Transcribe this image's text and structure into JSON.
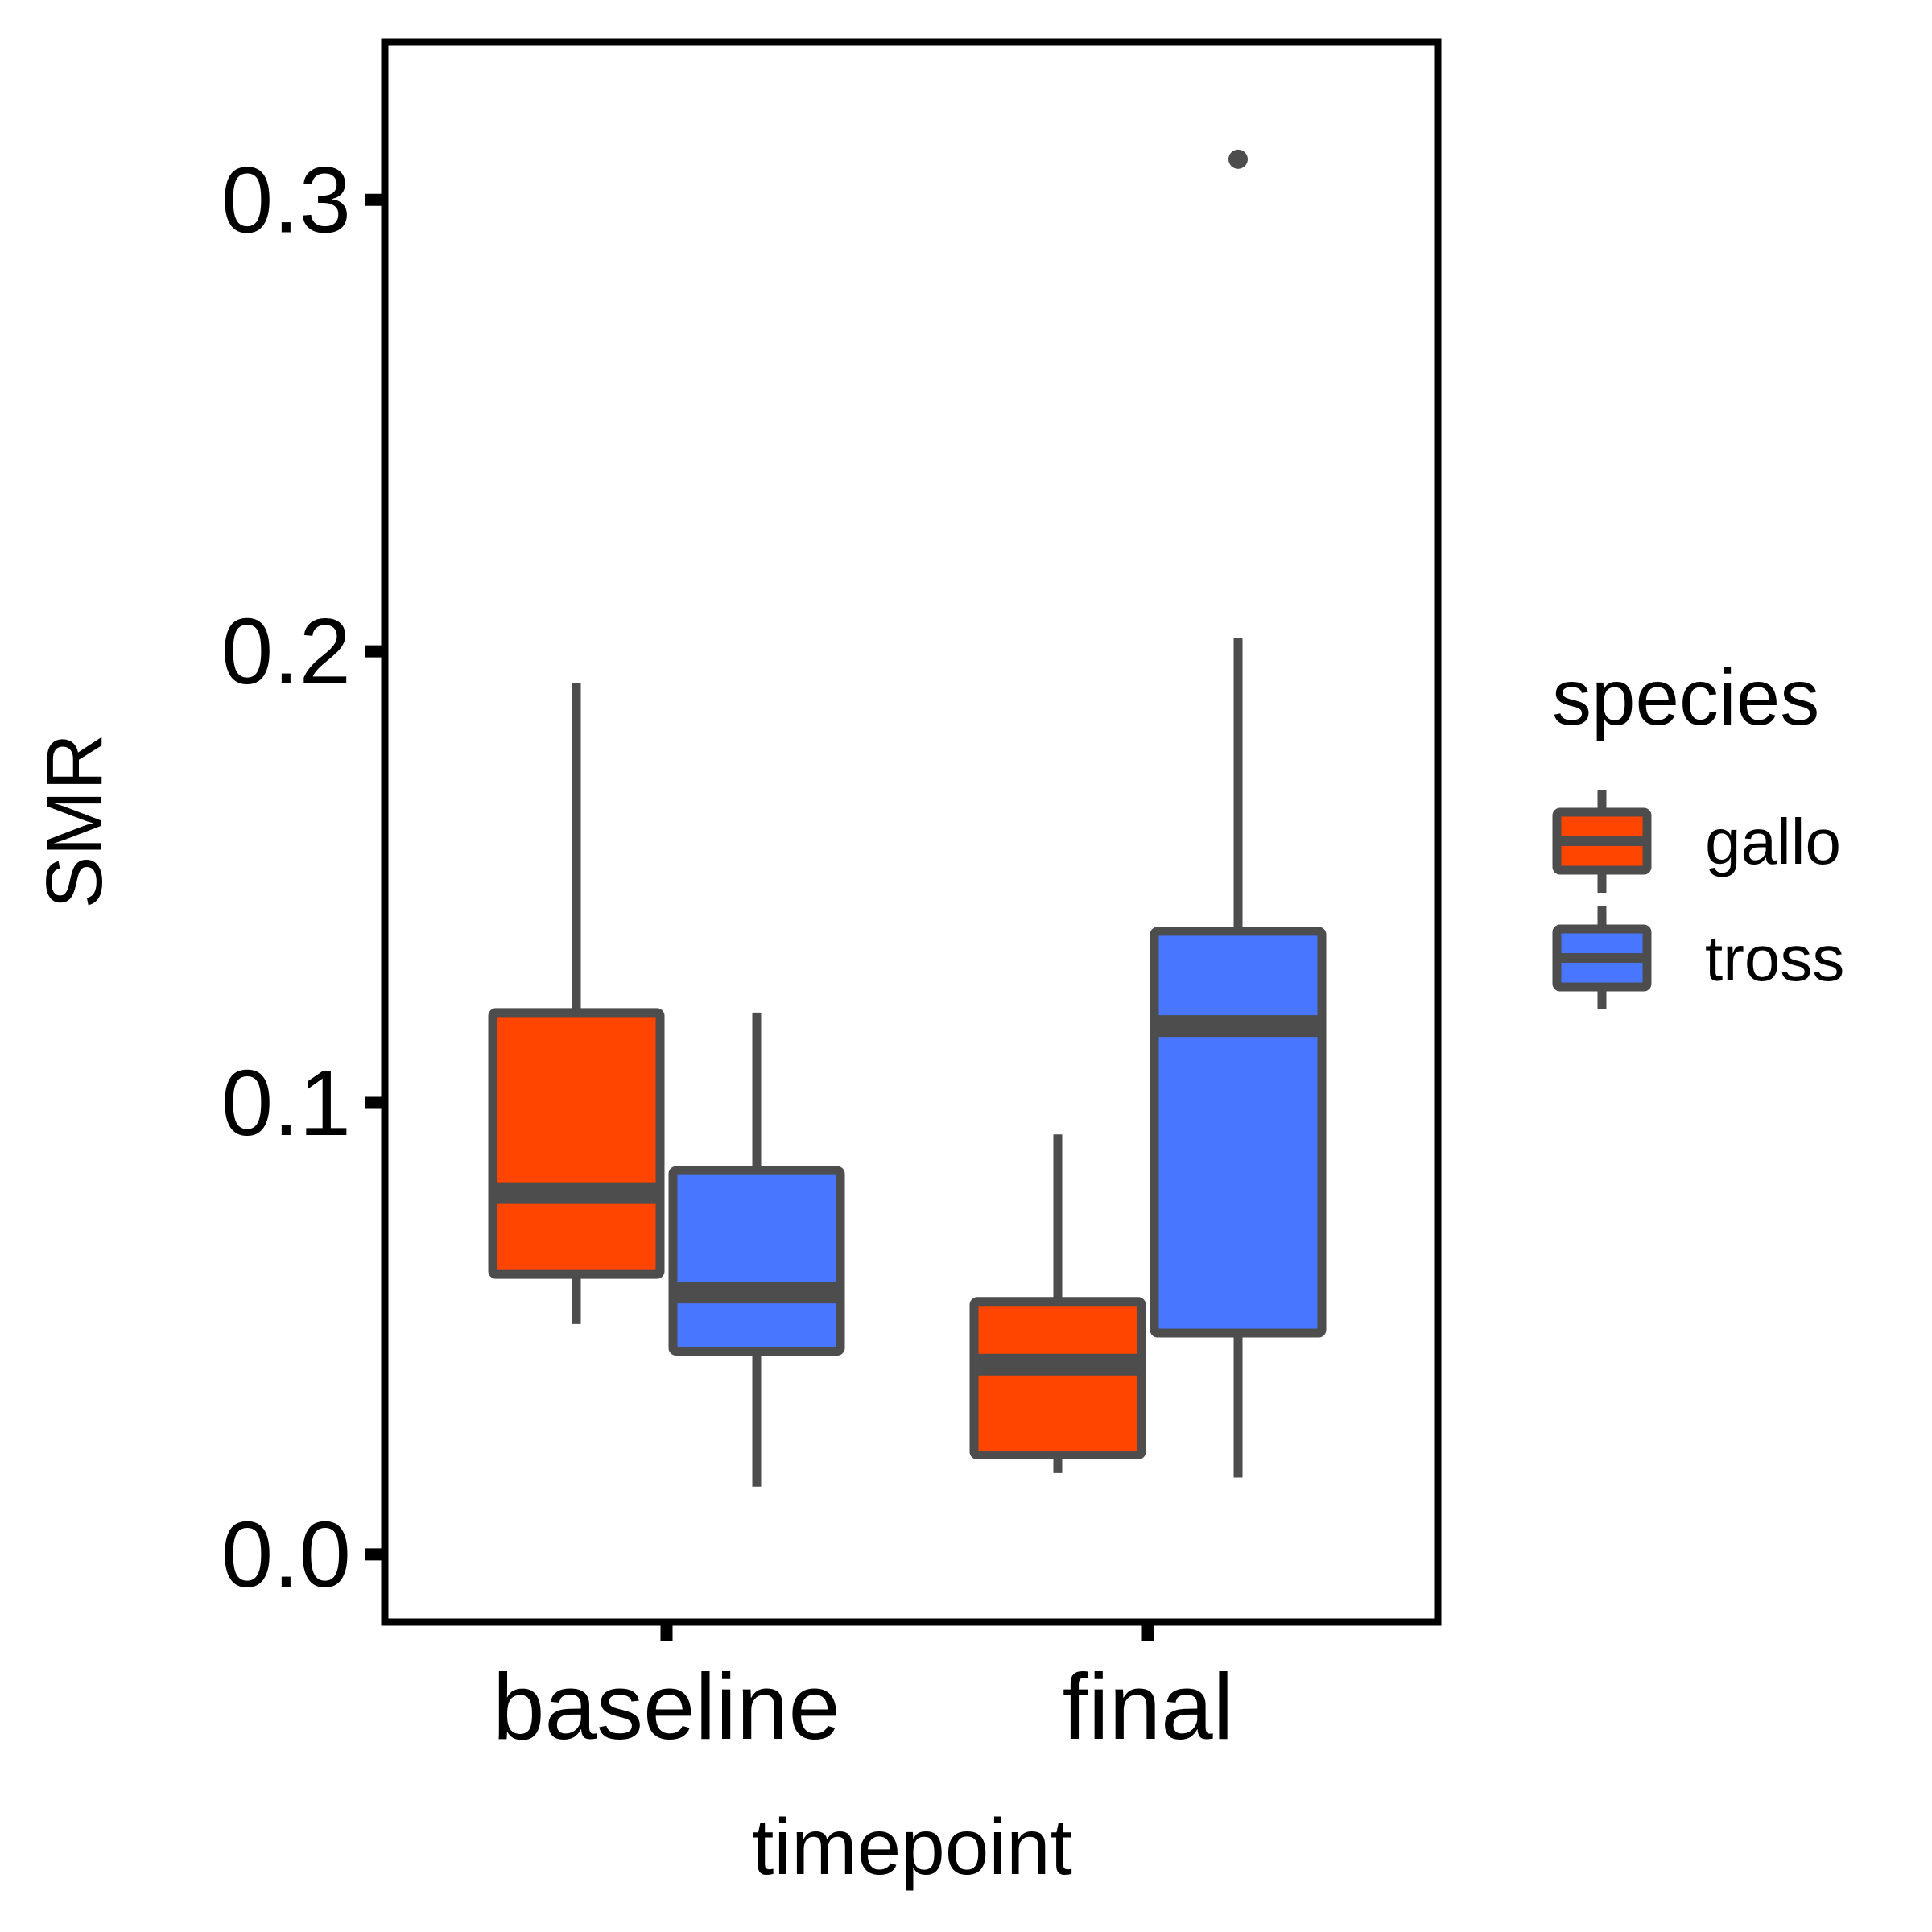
{
  "chart_data": {
    "type": "boxplot",
    "xlabel": "timepoint",
    "ylabel": "SMR",
    "categories": [
      "baseline",
      "final"
    ],
    "ylim": [
      -0.015,
      0.335
    ],
    "yticks": [
      0.0,
      0.1,
      0.2,
      0.3
    ],
    "ytick_labels": [
      "0.0",
      "0.1",
      "0.2",
      "0.3"
    ],
    "grid": false,
    "legend": {
      "title": "species",
      "position": "right",
      "entries": [
        "gallo",
        "tross"
      ]
    },
    "series": [
      {
        "name": "gallo",
        "color": "#FF4500",
        "boxes": [
          {
            "category": "baseline",
            "whisker_low": 0.051,
            "q1": 0.062,
            "median": 0.08,
            "q3": 0.12,
            "whisker_high": 0.193,
            "outliers": []
          },
          {
            "category": "final",
            "whisker_low": 0.018,
            "q1": 0.022,
            "median": 0.042,
            "q3": 0.056,
            "whisker_high": 0.093,
            "outliers": []
          }
        ]
      },
      {
        "name": "tross",
        "color": "#4876FF",
        "boxes": [
          {
            "category": "baseline",
            "whisker_low": 0.015,
            "q1": 0.045,
            "median": 0.058,
            "q3": 0.085,
            "whisker_high": 0.12,
            "outliers": []
          },
          {
            "category": "final",
            "whisker_low": 0.017,
            "q1": 0.049,
            "median": 0.117,
            "q3": 0.138,
            "whisker_high": 0.203,
            "outliers": [
              0.309
            ]
          }
        ]
      }
    ],
    "box_outline_color": "#4D4D4D"
  }
}
